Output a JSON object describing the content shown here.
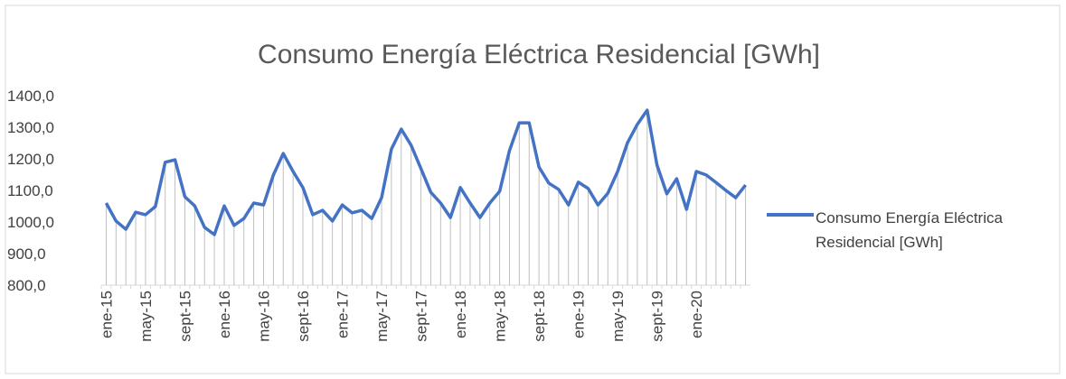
{
  "chart_data": {
    "type": "line",
    "title": "Consumo Energía Eléctrica Residencial [GWh]",
    "categories": [
      "ene-15",
      null,
      null,
      null,
      "may-15",
      null,
      null,
      null,
      "sept-15",
      null,
      null,
      null,
      "ene-16",
      null,
      null,
      null,
      "may-16",
      null,
      null,
      null,
      "sept-16",
      null,
      null,
      null,
      "ene-17",
      null,
      null,
      null,
      "may-17",
      null,
      null,
      null,
      "sept-17",
      null,
      null,
      null,
      "ene-18",
      null,
      null,
      null,
      "may-18",
      null,
      null,
      null,
      "sept-18",
      null,
      null,
      null,
      "ene-19",
      null,
      null,
      null,
      "may-19",
      null,
      null,
      null,
      "sept-19",
      null,
      null,
      null,
      "ene-20",
      null,
      null,
      null,
      null,
      null
    ],
    "series": [
      {
        "name": "Consumo Energía Eléctrica Residencial [GWh]",
        "color": "#4472c4",
        "values": [
          1060,
          1003,
          977,
          1031,
          1023,
          1049,
          1189,
          1197,
          1080,
          1051,
          983,
          960,
          1051,
          989,
          1011,
          1060,
          1054,
          1149,
          1217,
          1160,
          1109,
          1023,
          1037,
          1003,
          1054,
          1029,
          1037,
          1011,
          1077,
          1231,
          1294,
          1243,
          1169,
          1094,
          1060,
          1014,
          1109,
          1060,
          1014,
          1060,
          1097,
          1226,
          1314,
          1314,
          1174,
          1123,
          1103,
          1054,
          1126,
          1106,
          1054,
          1091,
          1160,
          1251,
          1309,
          1354,
          1180,
          1089,
          1137,
          1040,
          1160,
          1149,
          1125,
          1100,
          1077,
          1117
        ]
      }
    ],
    "ylim": [
      800,
      1400
    ],
    "yticks": [
      {
        "value": 800,
        "label": "800,0"
      },
      {
        "value": 900,
        "label": "900,0"
      },
      {
        "value": 1000,
        "label": "1000,0"
      },
      {
        "value": 1100,
        "label": "1100,0"
      },
      {
        "value": 1200,
        "label": "1200,0"
      },
      {
        "value": 1300,
        "label": "1300,0"
      },
      {
        "value": 1400,
        "label": "1400,0"
      }
    ],
    "legend": "right"
  }
}
